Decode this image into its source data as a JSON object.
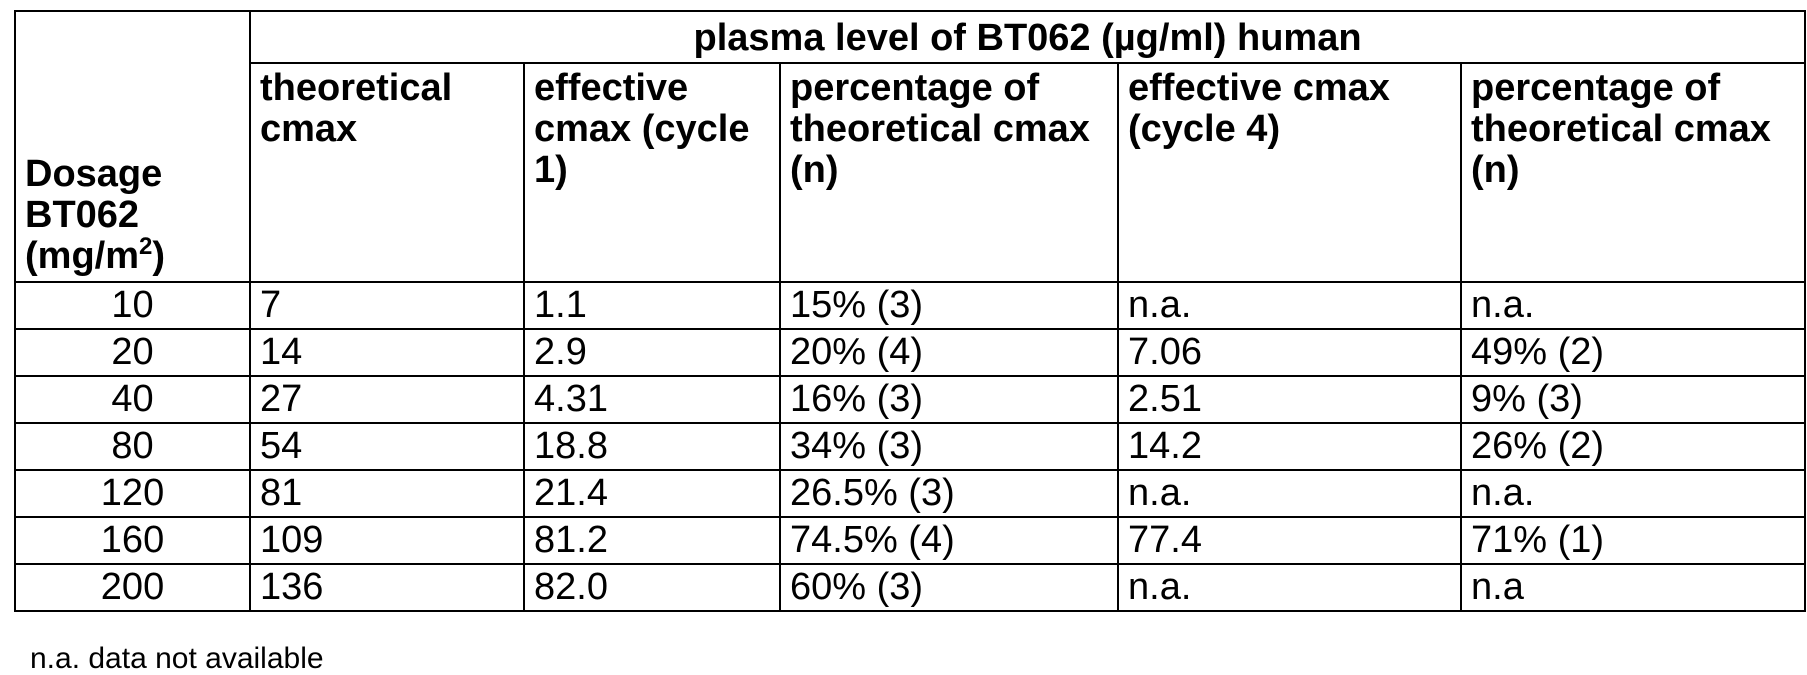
{
  "table": {
    "group_header": "plasma level of BT062 (µg/ml) human",
    "dosage_header": {
      "line1": "Dosage",
      "line2": "BT062",
      "line3_prefix": "(mg/m",
      "line3_sup": "2",
      "line3_suffix": ")"
    },
    "column_headers": [
      "theoretical cmax",
      "effective cmax (cycle 1)",
      "percentage of theoretical cmax (n)",
      "effective cmax (cycle 4)",
      "percentage of theoretical cmax (n)"
    ],
    "rows": [
      {
        "dosage": "10",
        "theoretical": "7",
        "eff1": "1.1",
        "pct1": "15% (3)",
        "eff4": "n.a.",
        "pct4": "n.a."
      },
      {
        "dosage": "20",
        "theoretical": "14",
        "eff1": "2.9",
        "pct1": "20% (4)",
        "eff4": "7.06",
        "pct4": "49% (2)"
      },
      {
        "dosage": "40",
        "theoretical": "27",
        "eff1": "4.31",
        "pct1": "16% (3)",
        "eff4": "2.51",
        "pct4": "9% (3)"
      },
      {
        "dosage": "80",
        "theoretical": "54",
        "eff1": "18.8",
        "pct1": "34% (3)",
        "eff4": "14.2",
        "pct4": "26% (2)"
      },
      {
        "dosage": "120",
        "theoretical": "81",
        "eff1": "21.4",
        "pct1": "26.5% (3)",
        "eff4": "n.a.",
        "pct4": "n.a."
      },
      {
        "dosage": "160",
        "theoretical": "109",
        "eff1": "81.2",
        "pct1": "74.5% (4)",
        "eff4": "77.4",
        "pct4": "71% (1)"
      },
      {
        "dosage": "200",
        "theoretical": "136",
        "eff1": "82.0",
        "pct1": "60% (3)",
        "eff4": "n.a.",
        "pct4": "n.a"
      }
    ]
  },
  "footnote": "n.a. data not available"
}
